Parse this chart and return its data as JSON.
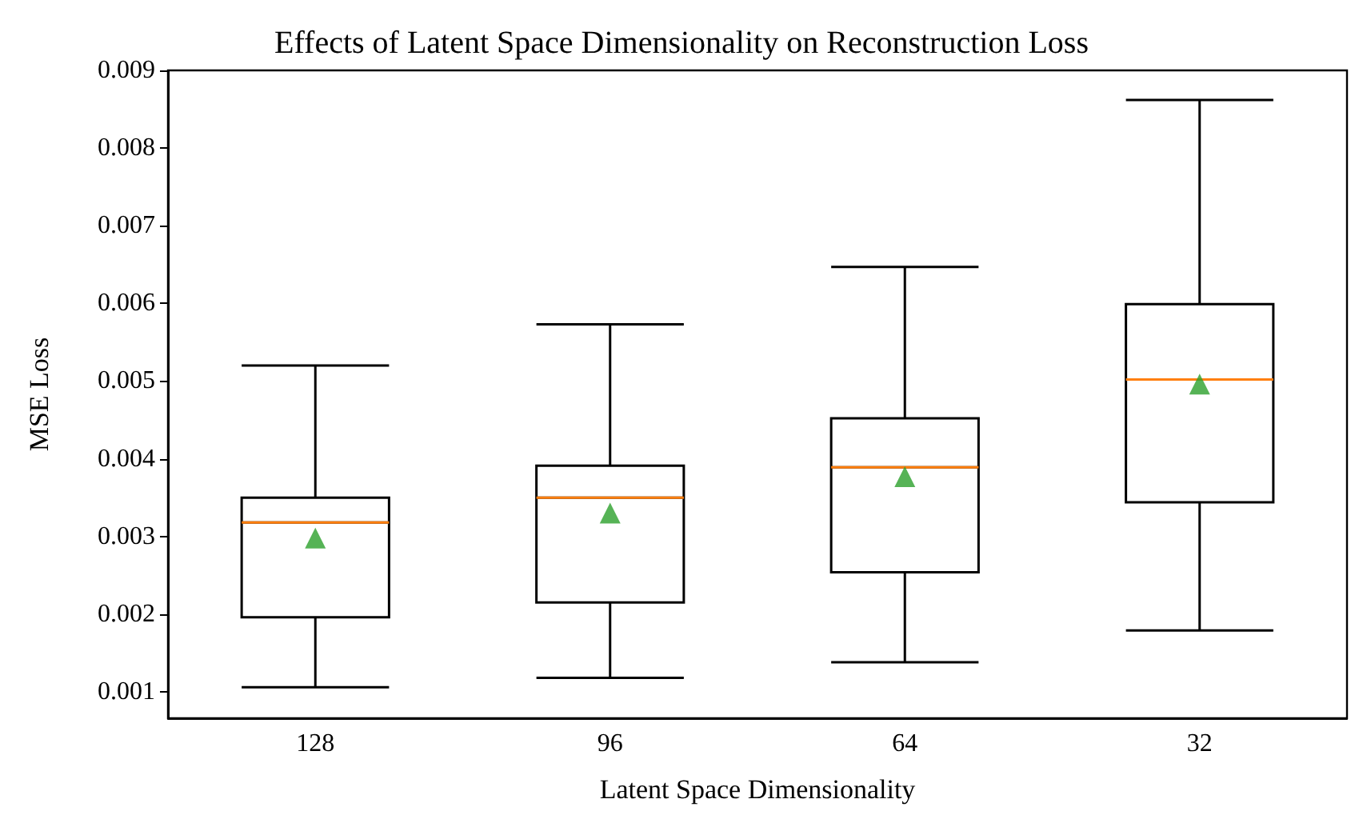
{
  "chart_data": {
    "type": "box",
    "title": "Effects of Latent Space Dimensionality on Reconstruction Loss",
    "xlabel": "Latent Space Dimensionality",
    "ylabel": "MSE Loss",
    "categories": [
      "128",
      "96",
      "64",
      "32"
    ],
    "boxes": [
      {
        "low": 0.00106,
        "q1": 0.00196,
        "median": 0.00318,
        "q3": 0.0035,
        "high": 0.0052,
        "mean": 0.00298
      },
      {
        "low": 0.00118,
        "q1": 0.00215,
        "median": 0.0035,
        "q3": 0.00391,
        "high": 0.00573,
        "mean": 0.0033
      },
      {
        "low": 0.00138,
        "q1": 0.00254,
        "median": 0.00389,
        "q3": 0.00452,
        "high": 0.00647,
        "mean": 0.00377
      },
      {
        "low": 0.00179,
        "q1": 0.00344,
        "median": 0.00502,
        "q3": 0.00599,
        "high": 0.00862,
        "mean": 0.00496
      }
    ],
    "ylim": [
      0.00066,
      0.009
    ],
    "yticks": [
      0.001,
      0.002,
      0.003,
      0.004,
      0.005,
      0.006,
      0.007,
      0.008,
      0.009
    ],
    "grid": false,
    "marker": "triangle"
  }
}
